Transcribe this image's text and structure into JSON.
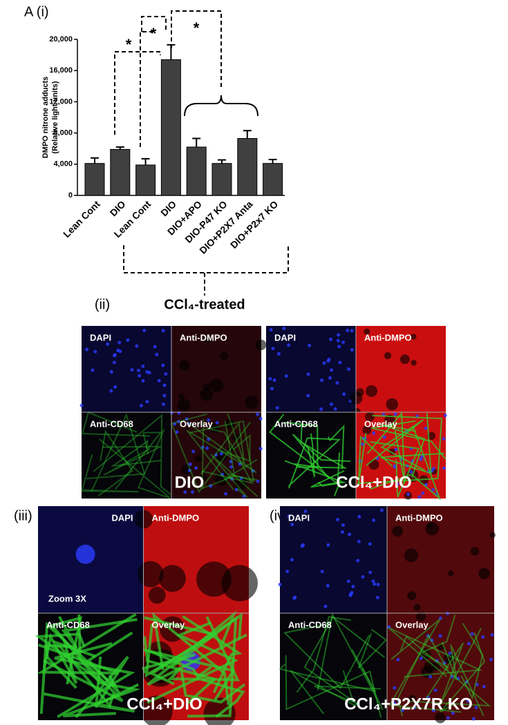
{
  "chart_data": {
    "type": "bar",
    "panel_label": "A (i)",
    "ylabel": [
      "DMPO nitrone adducts",
      "(Relative light units)"
    ],
    "categories": [
      "Lean Cont",
      "DIO",
      "Lean Cont",
      "DIO",
      "DIO+APO",
      "DIO-P47 KO",
      "DIO+P2X7 Anta",
      "DIO+P2x7 KO"
    ],
    "values": [
      4100,
      5900,
      3900,
      17400,
      6200,
      4100,
      7300,
      4100
    ],
    "errors": [
      700,
      300,
      800,
      1900,
      1100,
      450,
      1000,
      500
    ],
    "color": "#404040",
    "ylim": [
      0,
      20000
    ],
    "yticks": [
      0,
      {
        "value": 4000,
        "label": "4,000"
      },
      {
        "value": 8000,
        "label": "8,000"
      },
      {
        "value": 12000,
        "label": "12,000"
      },
      {
        "value": 16000,
        "label": "16,000"
      },
      {
        "value": 20000,
        "label": "20,000"
      }
    ],
    "annotations": [
      "*",
      "*",
      "*"
    ],
    "group_label": "CCl₄-treated"
  },
  "panels": [
    {
      "label": "(ii)",
      "images": [
        {
          "title": "DIO",
          "quadrants": [
            "DAPI",
            "Anti-DMPO",
            "Anti-CD68",
            "Overlay"
          ]
        },
        {
          "title": "CCl₄+DIO",
          "quadrants": [
            "DAPI",
            "Anti-DMPO",
            "Anti-CD68",
            "Overlay"
          ]
        }
      ]
    },
    {
      "label": "(iii)",
      "images": [
        {
          "title": "CCl₄+DIO",
          "note": "Zoom 3X",
          "quadrants": [
            "DAPI",
            "Anti-DMPO",
            "Anti-CD68",
            "Overlay"
          ]
        }
      ]
    },
    {
      "label": "(iv)",
      "images": [
        {
          "title": "CCl₄+P2X7R KO",
          "quadrants": [
            "DAPI",
            "Anti-DMPO",
            "Anti-CD68",
            "Overlay"
          ]
        }
      ]
    }
  ]
}
